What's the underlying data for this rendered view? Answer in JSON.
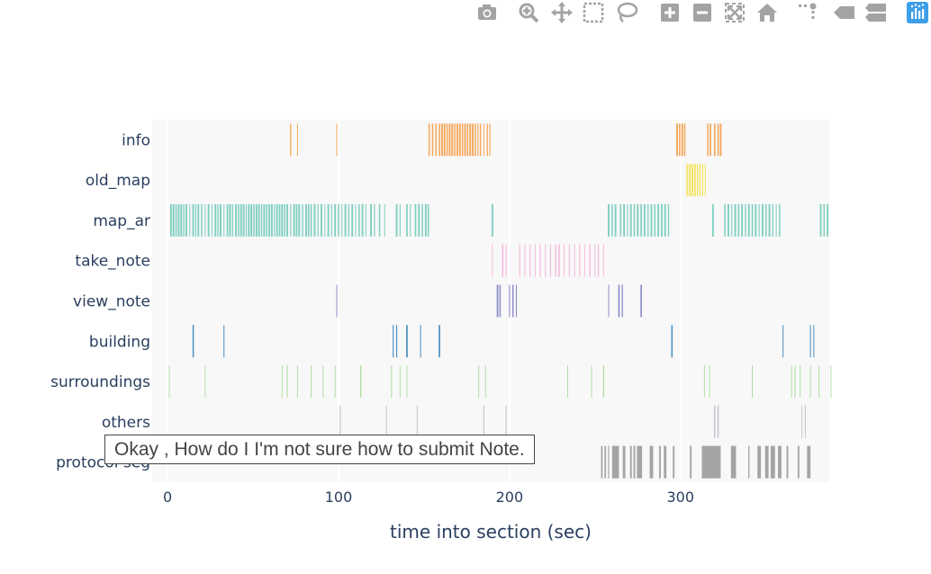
{
  "toolbar": {
    "buttons": [
      {
        "name": "camera-icon",
        "x": 541
      },
      {
        "name": "zoom-icon",
        "x": 587
      },
      {
        "name": "pan-icon",
        "x": 624
      },
      {
        "name": "box-select-icon",
        "x": 659
      },
      {
        "name": "lasso-icon",
        "x": 696
      },
      {
        "name": "zoom-in-icon",
        "x": 744
      },
      {
        "name": "zoom-out-icon",
        "x": 780
      },
      {
        "name": "autoscale-icon",
        "x": 816
      },
      {
        "name": "home-icon",
        "x": 852
      },
      {
        "name": "spikelines-icon",
        "x": 897
      },
      {
        "name": "hover-closest-icon",
        "x": 937
      },
      {
        "name": "hover-compare-icon",
        "x": 972
      },
      {
        "name": "plotly-logo-icon",
        "x": 1019
      }
    ],
    "colors": {
      "icon": "#a3a3a3",
      "logo": "#3f9ee8"
    }
  },
  "hover": {
    "text": "Okay , How do I I'm not sure how to submit Note."
  },
  "chart_data": {
    "type": "event-raster",
    "xlabel": "time into section (sec)",
    "xlim": [
      -9,
      387
    ],
    "xticks": [
      0,
      100,
      200,
      300
    ],
    "categories": [
      "info",
      "old_map",
      "map_ar",
      "take_note",
      "view_note",
      "building",
      "surroundings",
      "others",
      "protocol seg"
    ],
    "colors": {
      "info": "#f6a75a",
      "old_map": "#f2e35e",
      "map_ar": "#7fcfc0",
      "take_note": "#f5b8de",
      "view_note": "#8f91c9",
      "building": "#4a8fc0",
      "surroundings": "#b4dfa6",
      "others": "#c3c6d2",
      "protocol seg": "#a4a4a4"
    },
    "events": {
      "info": [
        [
          72,
          0.7
        ],
        [
          76,
          0.5
        ],
        [
          99,
          0.4
        ],
        [
          153,
          0.8
        ],
        [
          155,
          0.8
        ],
        [
          157,
          0.8
        ],
        [
          159,
          0.8
        ],
        [
          160.5,
          1
        ],
        [
          162,
          1
        ],
        [
          163.5,
          0.8
        ],
        [
          165,
          1
        ],
        [
          166.5,
          1
        ],
        [
          168,
          0.8
        ],
        [
          169.5,
          1
        ],
        [
          171,
          1
        ],
        [
          172.5,
          0.8
        ],
        [
          174,
          1
        ],
        [
          175.5,
          0.8
        ],
        [
          177,
          1
        ],
        [
          178.5,
          1
        ],
        [
          180,
          0.8
        ],
        [
          181.5,
          0.6
        ],
        [
          183,
          0.8
        ],
        [
          185,
          0.5
        ],
        [
          187,
          0.7
        ],
        [
          188.5,
          0.6
        ],
        [
          298,
          1
        ],
        [
          299.5,
          0.8
        ],
        [
          301,
          1
        ],
        [
          302.5,
          0.8
        ],
        [
          316,
          0.8
        ],
        [
          317.5,
          0.9
        ],
        [
          320,
          0.9
        ],
        [
          322,
          0.8
        ],
        [
          323.5,
          1
        ]
      ],
      "old_map": [
        [
          304,
          0.9
        ],
        [
          305.5,
          1
        ],
        [
          307,
          1
        ],
        [
          308.5,
          0.9
        ],
        [
          310,
          0.8
        ],
        [
          311.5,
          0.7
        ],
        [
          313,
          0.6
        ],
        [
          314.5,
          0.5
        ]
      ],
      "map_ar": [
        [
          2,
          1
        ],
        [
          3.5,
          1
        ],
        [
          5,
          0.8
        ],
        [
          6.5,
          1
        ],
        [
          8,
          1
        ],
        [
          9.5,
          0.7
        ],
        [
          11,
          1
        ],
        [
          13,
          0.5
        ],
        [
          15,
          1
        ],
        [
          16.5,
          0.6
        ],
        [
          18,
          1
        ],
        [
          20,
          0.8
        ],
        [
          22,
          0.5
        ],
        [
          24,
          1
        ],
        [
          26,
          0.5
        ],
        [
          28,
          1
        ],
        [
          29.5,
          0.7
        ],
        [
          31,
          1
        ],
        [
          33,
          0.4
        ],
        [
          35,
          0.9
        ],
        [
          36.5,
          1
        ],
        [
          38,
          0.7
        ],
        [
          40,
          1
        ],
        [
          41.5,
          0.8
        ],
        [
          43,
          1
        ],
        [
          44.5,
          1
        ],
        [
          46,
          0.6
        ],
        [
          47.5,
          1
        ],
        [
          49,
          1
        ],
        [
          50.5,
          0.8
        ],
        [
          52,
          1
        ],
        [
          53.5,
          1
        ],
        [
          55,
          0.7
        ],
        [
          56.5,
          1
        ],
        [
          58,
          0.8
        ],
        [
          59.5,
          1
        ],
        [
          61,
          1
        ],
        [
          62.5,
          0.6
        ],
        [
          64,
          1
        ],
        [
          65.5,
          0.9
        ],
        [
          67,
          1
        ],
        [
          68.5,
          0.8
        ],
        [
          70,
          1
        ],
        [
          72,
          0.6
        ],
        [
          74,
          1
        ],
        [
          75.5,
          0.9
        ],
        [
          77,
          1
        ],
        [
          79,
          0.7
        ],
        [
          81,
          1
        ],
        [
          82.5,
          0.9
        ],
        [
          84,
          0.8
        ],
        [
          86,
          1
        ],
        [
          88,
          0.6
        ],
        [
          90,
          1
        ],
        [
          92,
          0.5
        ],
        [
          94,
          1
        ],
        [
          96,
          0.6
        ],
        [
          98,
          1
        ],
        [
          100,
          0.8
        ],
        [
          102,
          0.5
        ],
        [
          104,
          1
        ],
        [
          106,
          0.7
        ],
        [
          108,
          1
        ],
        [
          110,
          0.5
        ],
        [
          112,
          0.8
        ],
        [
          114,
          1
        ],
        [
          116,
          0.5
        ],
        [
          119,
          1
        ],
        [
          121,
          0.6
        ],
        [
          124,
          0.8
        ],
        [
          127,
          0.5
        ],
        [
          134,
          1
        ],
        [
          136,
          0.6
        ],
        [
          140,
          0.9
        ],
        [
          142,
          0.6
        ],
        [
          145,
          0.9
        ],
        [
          147,
          1
        ],
        [
          149,
          0.8
        ],
        [
          151,
          1
        ],
        [
          152.5,
          0.8
        ],
        [
          190,
          1
        ],
        [
          258,
          1
        ],
        [
          260,
          0.8
        ],
        [
          262,
          1
        ],
        [
          265,
          0.8
        ],
        [
          267,
          1
        ],
        [
          269,
          0.6
        ],
        [
          271,
          1
        ],
        [
          273,
          0.8
        ],
        [
          275,
          1
        ],
        [
          277,
          0.9
        ],
        [
          279,
          1
        ],
        [
          281,
          0.7
        ],
        [
          283,
          1
        ],
        [
          285,
          0.8
        ],
        [
          287,
          1
        ],
        [
          289,
          0.9
        ],
        [
          291,
          1
        ],
        [
          293,
          0.7
        ],
        [
          319,
          1
        ],
        [
          326,
          0.8
        ],
        [
          328,
          1
        ],
        [
          330,
          0.6
        ],
        [
          332,
          1
        ],
        [
          334,
          0.8
        ],
        [
          336,
          1
        ],
        [
          338,
          0.7
        ],
        [
          340,
          1
        ],
        [
          342,
          0.8
        ],
        [
          344,
          1
        ],
        [
          346,
          0.6
        ],
        [
          348,
          1
        ],
        [
          350,
          0.8
        ],
        [
          352,
          1
        ],
        [
          354,
          0.7
        ],
        [
          356,
          0.5
        ],
        [
          358,
          0.8
        ],
        [
          382,
          1
        ],
        [
          384,
          0.8
        ],
        [
          386,
          1
        ]
      ],
      "take_note": [
        [
          190,
          0.4
        ],
        [
          196,
          0.8
        ],
        [
          198,
          0.6
        ],
        [
          206,
          0.6
        ],
        [
          209,
          0.5
        ],
        [
          212,
          0.6
        ],
        [
          215,
          0.5
        ],
        [
          218,
          0.6
        ],
        [
          221,
          0.5
        ],
        [
          224,
          0.6
        ],
        [
          227,
          0.7
        ],
        [
          229,
          0.8
        ],
        [
          232,
          0.5
        ],
        [
          235,
          0.6
        ],
        [
          238,
          0.5
        ],
        [
          241,
          0.6
        ],
        [
          244,
          0.5
        ],
        [
          247,
          0.7
        ],
        [
          250,
          0.5
        ],
        [
          252,
          0.6
        ],
        [
          255,
          0.5
        ]
      ],
      "view_note": [
        [
          99,
          0.4
        ],
        [
          193,
          1
        ],
        [
          194.5,
          0.8
        ],
        [
          200,
          0.6
        ],
        [
          202,
          0.8
        ],
        [
          204,
          0.6
        ],
        [
          258,
          0.4
        ],
        [
          264,
          0.9
        ],
        [
          266,
          0.7
        ],
        [
          277,
          0.9
        ]
      ],
      "building": [
        [
          15,
          0.8
        ],
        [
          33,
          0.4
        ],
        [
          132,
          0.6
        ],
        [
          134,
          0.6
        ],
        [
          140,
          0.9
        ],
        [
          148,
          0.5
        ],
        [
          159,
          0.9
        ],
        [
          295,
          0.8
        ],
        [
          360,
          0.4
        ],
        [
          376,
          0.5
        ],
        [
          378,
          0.4
        ]
      ],
      "surroundings": [
        [
          1,
          0.5
        ],
        [
          22,
          0.5
        ],
        [
          67,
          0.4
        ],
        [
          70,
          0.6
        ],
        [
          76,
          0.5
        ],
        [
          84,
          0.6
        ],
        [
          91,
          0.5
        ],
        [
          98,
          0.5
        ],
        [
          113,
          0.8
        ],
        [
          131,
          0.6
        ],
        [
          136,
          0.4
        ],
        [
          140,
          0.5
        ],
        [
          182,
          0.5
        ],
        [
          186,
          0.4
        ],
        [
          234,
          0.5
        ],
        [
          248,
          0.4
        ],
        [
          255,
          0.7
        ],
        [
          314,
          0.5
        ],
        [
          317,
          0.4
        ],
        [
          342,
          0.6
        ],
        [
          365,
          0.5
        ],
        [
          367,
          0.6
        ],
        [
          370,
          0.5
        ],
        [
          376,
          0.5
        ],
        [
          381,
          0.6
        ],
        [
          388,
          0.5
        ]
      ],
      "others": [
        [
          101,
          0.6
        ],
        [
          128,
          0.4
        ],
        [
          146,
          0.5
        ],
        [
          185,
          0.6
        ],
        [
          198,
          0.6
        ],
        [
          320,
          0.8
        ],
        [
          322,
          0.8
        ],
        [
          371,
          0.5
        ],
        [
          373,
          0.5
        ]
      ],
      "protocol seg": [
        [
          254,
          0.9
        ],
        [
          256,
          0.9
        ],
        [
          258,
          0.6
        ],
        [
          262,
          4
        ],
        [
          267,
          1.5
        ],
        [
          271,
          1
        ],
        [
          273,
          1
        ],
        [
          276,
          3
        ],
        [
          283,
          2
        ],
        [
          288,
          1
        ],
        [
          291,
          1.5
        ],
        [
          296,
          1
        ],
        [
          306,
          1
        ],
        [
          313,
          1
        ],
        [
          318,
          11
        ],
        [
          331,
          3
        ],
        [
          340,
          0.7
        ],
        [
          346,
          2
        ],
        [
          350.5,
          2
        ],
        [
          354,
          2.5
        ],
        [
          358,
          2
        ],
        [
          362.5,
          1
        ],
        [
          369,
          1
        ],
        [
          375,
          2
        ]
      ]
    }
  }
}
